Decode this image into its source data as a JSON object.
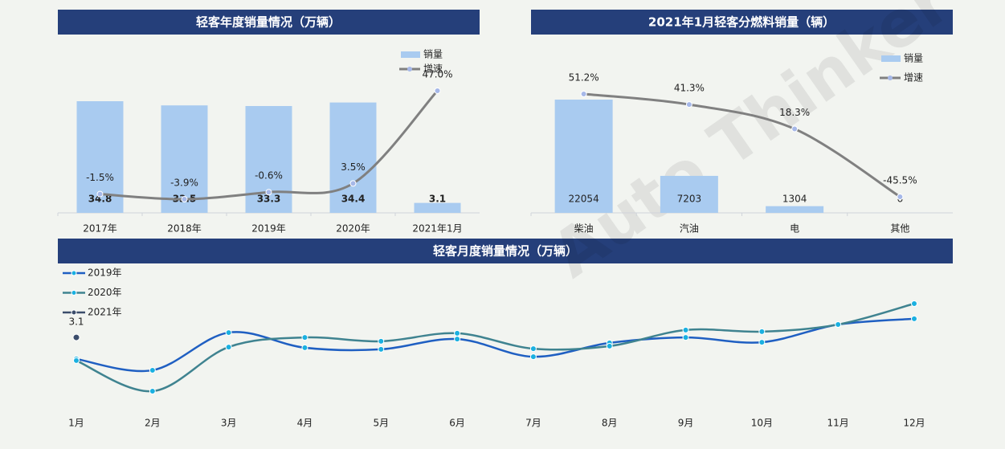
{
  "chart_data": [
    {
      "type": "bar-line",
      "title": "轻客年度销量情况（万辆）",
      "categories": [
        "2017年",
        "2018年",
        "2019年",
        "2020年",
        "2021年1月"
      ],
      "series": [
        {
          "name": "销量",
          "color": "#a9cbf0",
          "values": [
            34.8,
            33.5,
            33.3,
            34.4,
            3.1
          ]
        },
        {
          "name": "增速",
          "color": "#808080",
          "axis": "y2",
          "values": [
            -1.5,
            -3.9,
            -0.6,
            3.5,
            47.0
          ],
          "value_labels": [
            "-1.5%",
            "-3.9%",
            "-0.6%",
            "3.5%",
            "47.0%"
          ]
        }
      ]
    },
    {
      "type": "bar-line",
      "title": "2021年1月轻客分燃料销量（辆）",
      "categories": [
        "柴油",
        "汽油",
        "电",
        "其他"
      ],
      "series": [
        {
          "name": "销量",
          "color": "#a9cbf0",
          "values": [
            22054,
            7203,
            1304,
            6
          ]
        },
        {
          "name": "增速",
          "color": "#808080",
          "axis": "y2",
          "values": [
            51.2,
            41.3,
            18.3,
            -45.5
          ],
          "value_labels": [
            "51.2%",
            "41.3%",
            "18.3%",
            "-45.5%"
          ]
        }
      ]
    },
    {
      "type": "line",
      "title": "轻客月度销量情况（万辆）",
      "categories": [
        "1月",
        "2月",
        "3月",
        "4月",
        "5月",
        "6月",
        "7月",
        "8月",
        "9月",
        "10月",
        "11月",
        "12月"
      ],
      "series": [
        {
          "name": "2019年",
          "color": "#1f5fc2",
          "values": [
            2.43,
            2.08,
            3.25,
            2.78,
            2.73,
            3.05,
            2.5,
            2.93,
            3.1,
            2.95,
            3.5,
            3.68
          ]
        },
        {
          "name": "2020年",
          "color": "#3f8390",
          "values": [
            2.38,
            1.43,
            2.8,
            3.1,
            2.98,
            3.23,
            2.75,
            2.83,
            3.33,
            3.28,
            3.5,
            4.15
          ]
        },
        {
          "name": "2021年",
          "color": "#3b4d6b",
          "values": [
            3.1,
            null,
            null,
            null,
            null,
            null,
            null,
            null,
            null,
            null,
            null,
            null
          ]
        }
      ]
    }
  ],
  "watermark": "Auto Thinker"
}
